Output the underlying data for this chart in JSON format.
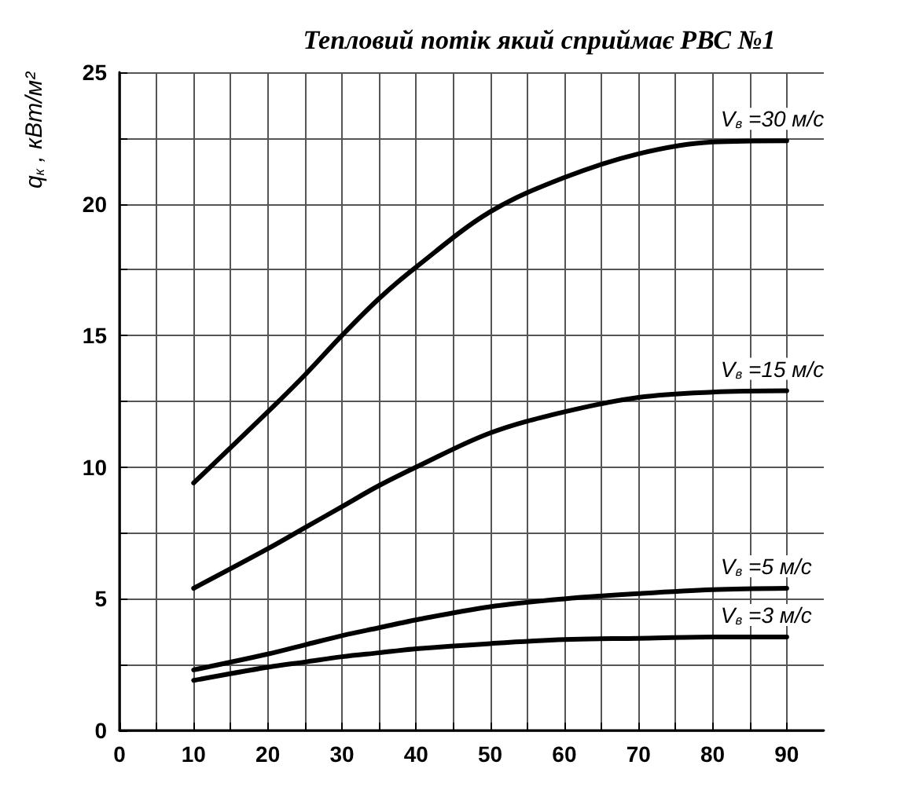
{
  "chart_data": {
    "type": "line",
    "title": "Тепловий потік який сприймає РВС №1",
    "ylabel": "q$_{к}$ , кВт/м²",
    "x": [
      10,
      20,
      25,
      30,
      35,
      40,
      50,
      60,
      70,
      80,
      90
    ],
    "series": [
      {
        "name": "V$_{в}$ =30 м/с",
        "color": "#000000",
        "values": [
          9.4,
          12.1,
          13.5,
          15.0,
          16.4,
          17.6,
          19.7,
          21.0,
          21.9,
          22.35,
          22.4
        ]
      },
      {
        "name": "V$_{в}$ =15 м/с",
        "color": "#000000",
        "values": [
          5.4,
          6.9,
          7.7,
          8.5,
          9.3,
          10.0,
          11.3,
          12.1,
          12.65,
          12.85,
          12.9
        ]
      },
      {
        "name": "V$_{в}$ =5 м/с",
        "color": "#000000",
        "values": [
          2.3,
          2.9,
          3.25,
          3.6,
          3.9,
          4.2,
          4.7,
          5.0,
          5.2,
          5.35,
          5.4
        ]
      },
      {
        "name": "V$_{в}$ =3 м/с",
        "color": "#000000",
        "values": [
          1.9,
          2.4,
          2.6,
          2.8,
          2.95,
          3.1,
          3.3,
          3.45,
          3.5,
          3.55,
          3.55
        ]
      }
    ],
    "xlim": [
      0,
      95
    ],
    "xticks": [
      0,
      {
        "value": 5,
        "label": null
      },
      10,
      {
        "value": 15,
        "label": null
      },
      20,
      {
        "value": 25,
        "label": null
      },
      30,
      {
        "value": 35,
        "label": null
      },
      40,
      {
        "value": 45,
        "label": null
      },
      50,
      {
        "value": 55,
        "label": null
      },
      60,
      {
        "value": 65,
        "label": null
      },
      70,
      {
        "value": 75,
        "label": null
      },
      80,
      {
        "value": 85,
        "label": null
      },
      90
    ],
    "ylim": [
      0,
      25
    ],
    "yticks": [
      0,
      {
        "value": 2.5,
        "label": null
      },
      5,
      {
        "value": 7.5,
        "label": null
      },
      10,
      {
        "value": 12.5,
        "label": null
      },
      15,
      {
        "value": 17.5,
        "label": null
      },
      20,
      {
        "value": 22.5,
        "label": null
      },
      25
    ],
    "grid": true,
    "marker": "none",
    "line_style": "solid",
    "legend": false
  }
}
